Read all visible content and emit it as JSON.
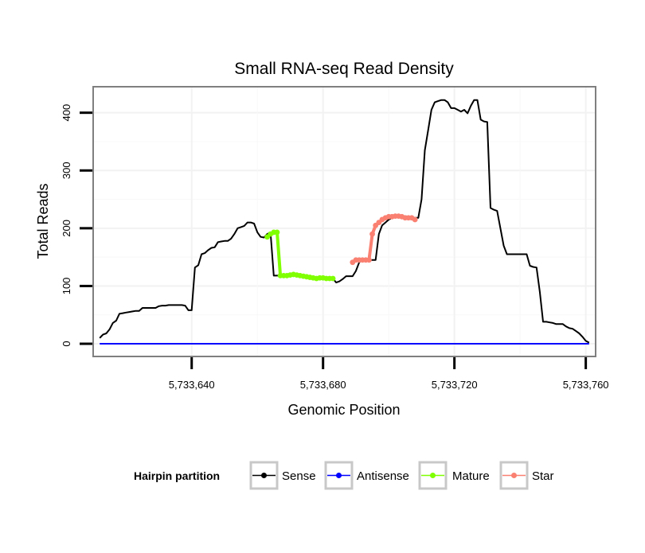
{
  "chart_data": {
    "type": "line",
    "title": "Small RNA-seq Read Density",
    "xlabel": "Genomic Position",
    "ylabel": "Total Reads",
    "xlim": [
      5733610,
      5733763
    ],
    "ylim": [
      -22,
      445
    ],
    "x_ticks": [
      5733640,
      5733680,
      5733720,
      5733760
    ],
    "x_tick_labels": [
      "5,733,640",
      "5,733,680",
      "5,733,720",
      "5,733,760"
    ],
    "y_ticks": [
      0,
      100,
      200,
      300,
      400
    ],
    "y_tick_labels": [
      "0",
      "100",
      "200",
      "300",
      "400"
    ],
    "grid": true,
    "legend": {
      "title": "Hairpin partition",
      "position": "bottom",
      "entries": [
        {
          "label": "Sense",
          "color": "#000000"
        },
        {
          "label": "Antisense",
          "color": "#0000ff"
        },
        {
          "label": "Mature",
          "color": "#7fff00"
        },
        {
          "label": "Star",
          "color": "#fa8072"
        }
      ]
    },
    "series": [
      {
        "name": "Sense",
        "color": "#000000",
        "x": [
          5733612,
          5733613,
          5733614,
          5733615,
          5733616,
          5733617,
          5733618,
          5733619,
          5733620,
          5733621,
          5733622,
          5733623,
          5733624,
          5733625,
          5733626,
          5733627,
          5733628,
          5733629,
          5733630,
          5733631,
          5733632,
          5733633,
          5733634,
          5733635,
          5733636,
          5733637,
          5733638,
          5733639,
          5733640,
          5733641,
          5733642,
          5733643,
          5733644,
          5733645,
          5733646,
          5733647,
          5733648,
          5733649,
          5733650,
          5733651,
          5733652,
          5733653,
          5733654,
          5733655,
          5733656,
          5733657,
          5733658,
          5733659,
          5733660,
          5733661,
          5733662,
          5733663,
          5733664,
          5733665,
          5733666,
          5733667,
          5733668,
          5733669,
          5733670,
          5733671,
          5733672,
          5733673,
          5733674,
          5733675,
          5733676,
          5733677,
          5733678,
          5733679,
          5733680,
          5733681,
          5733682,
          5733683,
          5733684,
          5733685,
          5733686,
          5733687,
          5733688,
          5733689,
          5733690,
          5733691,
          5733692,
          5733693,
          5733694,
          5733695,
          5733696,
          5733697,
          5733698,
          5733699,
          5733700,
          5733701,
          5733702,
          5733703,
          5733704,
          5733705,
          5733706,
          5733707,
          5733708,
          5733709,
          5733710,
          5733711,
          5733712,
          5733713,
          5733714,
          5733715,
          5733716,
          5733717,
          5733718,
          5733719,
          5733720,
          5733721,
          5733722,
          5733723,
          5733724,
          5733725,
          5733726,
          5733727,
          5733728,
          5733729,
          5733730,
          5733731,
          5733732,
          5733733,
          5733734,
          5733735,
          5733736,
          5733737,
          5733738,
          5733739,
          5733740,
          5733741,
          5733742,
          5733743,
          5733744,
          5733745,
          5733746,
          5733747,
          5733748,
          5733749,
          5733750,
          5733751,
          5733752,
          5733753,
          5733754,
          5733755,
          5733756,
          5733757,
          5733758,
          5733759,
          5733760,
          5733761
        ],
        "y": [
          10,
          16,
          18,
          25,
          36,
          40,
          52,
          53,
          54,
          55,
          56,
          57,
          57,
          62,
          62,
          62,
          62,
          62,
          65,
          66,
          66,
          67,
          67,
          67,
          67,
          67,
          66,
          58,
          58,
          132,
          136,
          155,
          157,
          162,
          166,
          167,
          176,
          177,
          178,
          178,
          182,
          190,
          200,
          202,
          204,
          210,
          210,
          208,
          193,
          185,
          184,
          190,
          193,
          118,
          118,
          118,
          118,
          118,
          119,
          120,
          119,
          118,
          117,
          116,
          115,
          114,
          113,
          114,
          114,
          113,
          113,
          113,
          106,
          108,
          112,
          117,
          117,
          117,
          126,
          141,
          145,
          145,
          145,
          145,
          145,
          190,
          205,
          210,
          215,
          218,
          220,
          220,
          221,
          221,
          220,
          218,
          218,
          218,
          250,
          335,
          370,
          405,
          418,
          420,
          422,
          422,
          418,
          408,
          408,
          405,
          402,
          405,
          399,
          412,
          422,
          422,
          388,
          385,
          384,
          235,
          232,
          230,
          200,
          170,
          155,
          155,
          155,
          155,
          155,
          155,
          155,
          135,
          133,
          132,
          90,
          38,
          38,
          37,
          36,
          34,
          34,
          34,
          30,
          27,
          26,
          22,
          18,
          12,
          5,
          2
        ]
      },
      {
        "name": "Antisense",
        "color": "#0000ff",
        "x": [
          5733612,
          5733761
        ],
        "y": [
          0,
          0
        ]
      },
      {
        "name": "Mature",
        "color": "#7fff00",
        "x": [
          5733663,
          5733664,
          5733665,
          5733666,
          5733667,
          5733668,
          5733669,
          5733670,
          5733671,
          5733672,
          5733673,
          5733674,
          5733675,
          5733676,
          5733677,
          5733678,
          5733679,
          5733680,
          5733681,
          5733682,
          5733683
        ],
        "y": [
          185,
          190,
          193,
          193,
          118,
          118,
          118,
          119,
          120,
          119,
          118,
          117,
          116,
          115,
          114,
          113,
          114,
          114,
          113,
          113,
          113
        ]
      },
      {
        "name": "Star",
        "color": "#fa8072",
        "x": [
          5733689,
          5733690,
          5733691,
          5733692,
          5733693,
          5733694,
          5733695,
          5733696,
          5733697,
          5733698,
          5733699,
          5733700,
          5733701,
          5733702,
          5733703,
          5733704,
          5733705,
          5733706,
          5733707,
          5733708
        ],
        "y": [
          141,
          145,
          145,
          145,
          145,
          145,
          190,
          205,
          210,
          215,
          218,
          220,
          220,
          221,
          221,
          220,
          218,
          218,
          218,
          215
        ]
      }
    ]
  }
}
